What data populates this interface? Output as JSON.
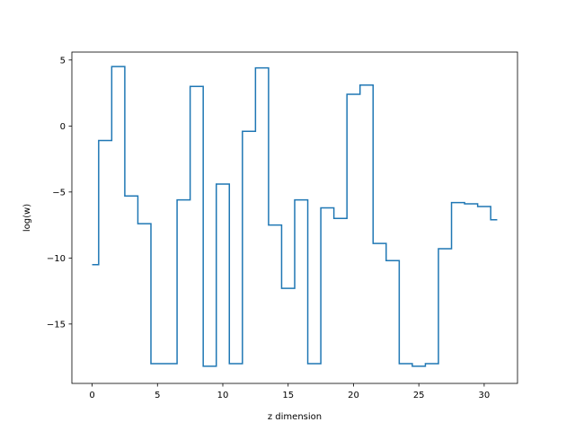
{
  "chart_data": {
    "type": "line",
    "drawstyle": "steps-mid",
    "title": "",
    "xlabel": "z dimension",
    "ylabel": "log(w)",
    "xlim": [
      -1.55,
      32.55
    ],
    "ylim": [
      -19.5,
      5.6
    ],
    "xticks": [
      0,
      5,
      10,
      15,
      20,
      25,
      30
    ],
    "yticks": [
      5,
      0,
      -5,
      -10,
      -15
    ],
    "ytick_labels": [
      "5",
      "0",
      "−5",
      "−10",
      "−15"
    ],
    "grid": false,
    "legend": false,
    "line_color": "#1f77b4",
    "x": [
      0,
      1,
      2,
      3,
      4,
      5,
      6,
      7,
      8,
      9,
      10,
      11,
      12,
      13,
      14,
      15,
      16,
      17,
      18,
      19,
      20,
      21,
      22,
      23,
      24,
      25,
      26,
      27,
      28,
      29,
      30,
      31
    ],
    "values": [
      -10.5,
      -1.1,
      4.5,
      -5.3,
      -7.4,
      -18.0,
      -18.0,
      -5.6,
      3.0,
      -18.2,
      -4.4,
      -18.0,
      -0.4,
      4.4,
      -7.5,
      -12.3,
      -5.6,
      -18.0,
      -6.2,
      -7.0,
      2.4,
      3.1,
      -8.9,
      -10.2,
      -18.0,
      -18.2,
      -18.0,
      -9.3,
      -5.8,
      -5.9,
      -6.1,
      -7.1
    ]
  }
}
